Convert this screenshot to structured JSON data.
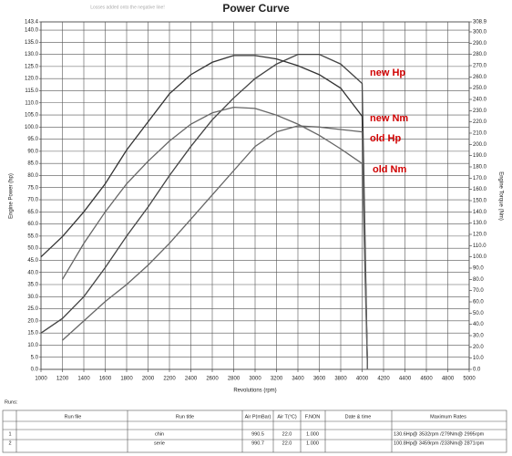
{
  "chart_data": {
    "type": "line",
    "title": "Power Curve",
    "subtitle": "Losses added onto the negative line!",
    "x_label": "Revolutions (rpm)",
    "y_label": "Engine Power (hp)",
    "y2_label": "Engine Torque (Nm)",
    "x": [
      1000,
      1200,
      1400,
      1600,
      1800,
      2000,
      2200,
      2400,
      2600,
      2800,
      3000,
      3200,
      3400,
      3600,
      3800,
      4000,
      4050
    ],
    "series": [
      {
        "name": "new Hp",
        "color": "#444444",
        "values": [
          15,
          21,
          30,
          42,
          55,
          67,
          80,
          92,
          103,
          112,
          120,
          126,
          130,
          130,
          126,
          118,
          0
        ]
      },
      {
        "name": "new Nm",
        "color": "#333333",
        "axis": "y2",
        "values": [
          100,
          118,
          140,
          165,
          195,
          220,
          245,
          262,
          273,
          279,
          279,
          276,
          270,
          262,
          250,
          225,
          0
        ]
      },
      {
        "name": "old Hp",
        "color": "#666666",
        "values": [
          null,
          12,
          20,
          28,
          35,
          43,
          52,
          62,
          72,
          82,
          92,
          98,
          100.5,
          100,
          99,
          98,
          0
        ]
      },
      {
        "name": "old Nm",
        "color": "#666666",
        "axis": "y2",
        "values": [
          null,
          80,
          112,
          140,
          165,
          185,
          203,
          218,
          228,
          233,
          232,
          226,
          218,
          208,
          196,
          183,
          0
        ]
      }
    ],
    "legend_color": "#d00000",
    "xlim": [
      1000,
      5000
    ],
    "xticks": [
      1000,
      1200,
      1400,
      1600,
      1800,
      2000,
      2200,
      2400,
      2600,
      2800,
      3000,
      3200,
      3400,
      3600,
      3800,
      4000,
      4200,
      4400,
      4600,
      4800,
      5000
    ],
    "ylim": [
      0,
      143.4
    ],
    "yticks": [
      {
        "value": 0,
        "label": "0.0"
      },
      {
        "value": 5,
        "label": "5.0"
      },
      {
        "value": 10,
        "label": "10.0"
      },
      {
        "value": 15,
        "label": "15.0"
      },
      {
        "value": 20,
        "label": "20.0"
      },
      {
        "value": 25,
        "label": "25.0"
      },
      {
        "value": 30,
        "label": "30.0"
      },
      {
        "value": 35,
        "label": "35.0"
      },
      {
        "value": 40,
        "label": "40.0"
      },
      {
        "value": 45,
        "label": "45.0"
      },
      {
        "value": 50,
        "label": "50.0"
      },
      {
        "value": 55,
        "label": "55.0"
      },
      {
        "value": 60,
        "label": "60.0"
      },
      {
        "value": 65,
        "label": "65.0"
      },
      {
        "value": 70,
        "label": "70.0"
      },
      {
        "value": 75,
        "label": "75.0"
      },
      {
        "value": 80,
        "label": "80.0"
      },
      {
        "value": 85,
        "label": "85.0"
      },
      {
        "value": 90,
        "label": "90.0"
      },
      {
        "value": 95,
        "label": "95.0"
      },
      {
        "value": 100,
        "label": "100.0"
      },
      {
        "value": 105,
        "label": "105.0"
      },
      {
        "value": 110,
        "label": "110.0"
      },
      {
        "value": 115,
        "label": "115.0"
      },
      {
        "value": 120,
        "label": "120.0"
      },
      {
        "value": 125,
        "label": "125.0"
      },
      {
        "value": 130,
        "label": "130.0"
      },
      {
        "value": 135,
        "label": "135.0"
      },
      {
        "value": 140,
        "label": "140.0"
      },
      143.4
    ],
    "y2lim": [
      0,
      308.9
    ],
    "y2ticks": [
      {
        "value": 0,
        "label": "0.0"
      },
      {
        "value": 10,
        "label": "10.0"
      },
      {
        "value": 20,
        "label": "20.0"
      },
      {
        "value": 30,
        "label": "30.0"
      },
      {
        "value": 40,
        "label": "40.0"
      },
      {
        "value": 50,
        "label": "50.0"
      },
      {
        "value": 60,
        "label": "60.0"
      },
      {
        "value": 70,
        "label": "70.0"
      },
      {
        "value": 80,
        "label": "80.0"
      },
      {
        "value": 90,
        "label": "90.0"
      },
      {
        "value": 100,
        "label": "100.0"
      },
      {
        "value": 110,
        "label": "110.0"
      },
      {
        "value": 120,
        "label": "120.0"
      },
      {
        "value": 130,
        "label": "130.0"
      },
      {
        "value": 140,
        "label": "140.0"
      },
      {
        "value": 150,
        "label": "150.0"
      },
      {
        "value": 160,
        "label": "160.0"
      },
      {
        "value": 170,
        "label": "170.0"
      },
      {
        "value": 180,
        "label": "180.0"
      },
      {
        "value": 190,
        "label": "190.0"
      },
      {
        "value": 200,
        "label": "200.0"
      },
      {
        "value": 210,
        "label": "210.0"
      },
      {
        "value": 220,
        "label": "220.0"
      },
      {
        "value": 230,
        "label": "230.0"
      },
      {
        "value": 240,
        "label": "240.0"
      },
      {
        "value": 250,
        "label": "250.0"
      },
      {
        "value": 260,
        "label": "260.0"
      },
      {
        "value": 270,
        "label": "270.0"
      },
      {
        "value": 280,
        "label": "280.0"
      },
      {
        "value": 290,
        "label": "290.0"
      },
      {
        "value": 300,
        "label": "300.0"
      },
      308.9
    ],
    "grid": true
  },
  "table": {
    "caption": "Runs:",
    "header": [
      "Run file",
      "Run title",
      "Air P(mBar)",
      "Air T(°C)",
      "F.NON",
      "Date & time",
      "Maximum Rates"
    ],
    "rows": [
      {
        "index": "1",
        "run_title": "chin",
        "air_p": "990.5",
        "air_t": "22.0",
        "f_non": "1.000",
        "max_rates": "130.6Hp@ 3532rpm /279Nm@ 2995rpm"
      },
      {
        "index": "2",
        "run_title": "serie",
        "air_p": "990.7",
        "air_t": "22.0",
        "f_non": "1.000",
        "max_rates": "100.8Hp@ 3459rpm /233Nm@ 2871rpm"
      }
    ]
  }
}
